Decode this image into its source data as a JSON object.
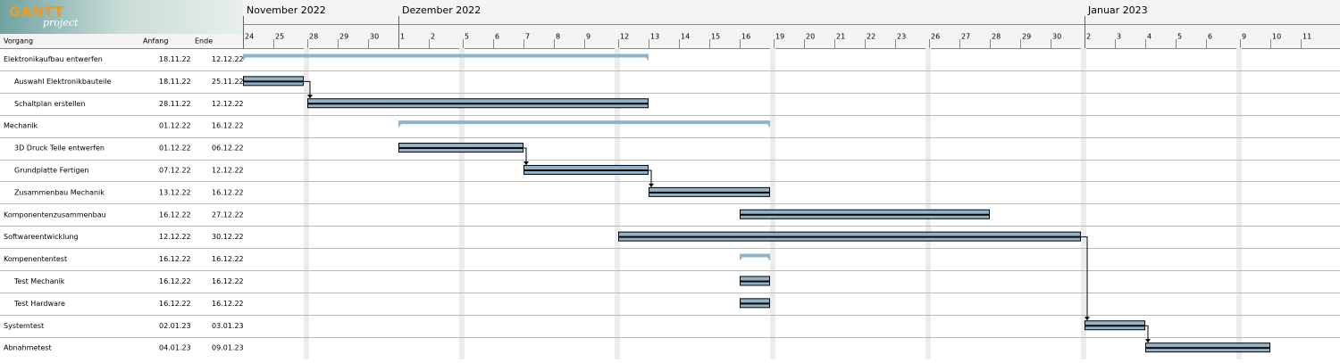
{
  "logo": {
    "main": "GANTT",
    "sub": "project"
  },
  "columns": [
    "Vorgang",
    "Anfang",
    "Ende"
  ],
  "months": [
    "November 2022",
    "Dezember 2022",
    "Januar 2023"
  ],
  "days": [
    24,
    25,
    28,
    29,
    30,
    1,
    2,
    5,
    6,
    7,
    8,
    9,
    12,
    13,
    14,
    15,
    16,
    19,
    20,
    21,
    22,
    23,
    26,
    27,
    28,
    29,
    30,
    2,
    3,
    4,
    5,
    6,
    9,
    10,
    11
  ],
  "tasks": [
    {
      "name": "Elektronikaufbau entwerfen",
      "start": "18.11.22",
      "end": "12.12.22",
      "level": 0,
      "summary": true
    },
    {
      "name": "Auswahl Elektronikbauteile",
      "start": "18.11.22",
      "end": "25.11.22",
      "level": 1,
      "summary": false
    },
    {
      "name": "Schaltplan erstellen",
      "start": "28.11.22",
      "end": "12.12.22",
      "level": 1,
      "summary": false
    },
    {
      "name": "Mechanik",
      "start": "01.12.22",
      "end": "16.12.22",
      "level": 0,
      "summary": true
    },
    {
      "name": "3D Druck Teile entwerfen",
      "start": "01.12.22",
      "end": "06.12.22",
      "level": 1,
      "summary": false
    },
    {
      "name": "Grundplatte Fertigen",
      "start": "07.12.22",
      "end": "12.12.22",
      "level": 1,
      "summary": false
    },
    {
      "name": "Zusammenbau Mechanik",
      "start": "13.12.22",
      "end": "16.12.22",
      "level": 1,
      "summary": false
    },
    {
      "name": "Komponentenzusammenbau",
      "start": "16.12.22",
      "end": "27.12.22",
      "level": 0,
      "summary": false
    },
    {
      "name": "Softwareentwicklung",
      "start": "12.12.22",
      "end": "30.12.22",
      "level": 0,
      "summary": false
    },
    {
      "name": "Kompenententest",
      "start": "16.12.22",
      "end": "16.12.22",
      "level": 0,
      "summary": true
    },
    {
      "name": "Test Mechanik",
      "start": "16.12.22",
      "end": "16.12.22",
      "level": 1,
      "summary": false
    },
    {
      "name": "Test Hardware",
      "start": "16.12.22",
      "end": "16.12.22",
      "level": 1,
      "summary": false
    },
    {
      "name": "Systemtest",
      "start": "02.01.23",
      "end": "03.01.23",
      "level": 0,
      "summary": false
    },
    {
      "name": "Abnahmetest",
      "start": "04.01.23",
      "end": "09.01.23",
      "level": 0,
      "summary": false
    }
  ]
}
